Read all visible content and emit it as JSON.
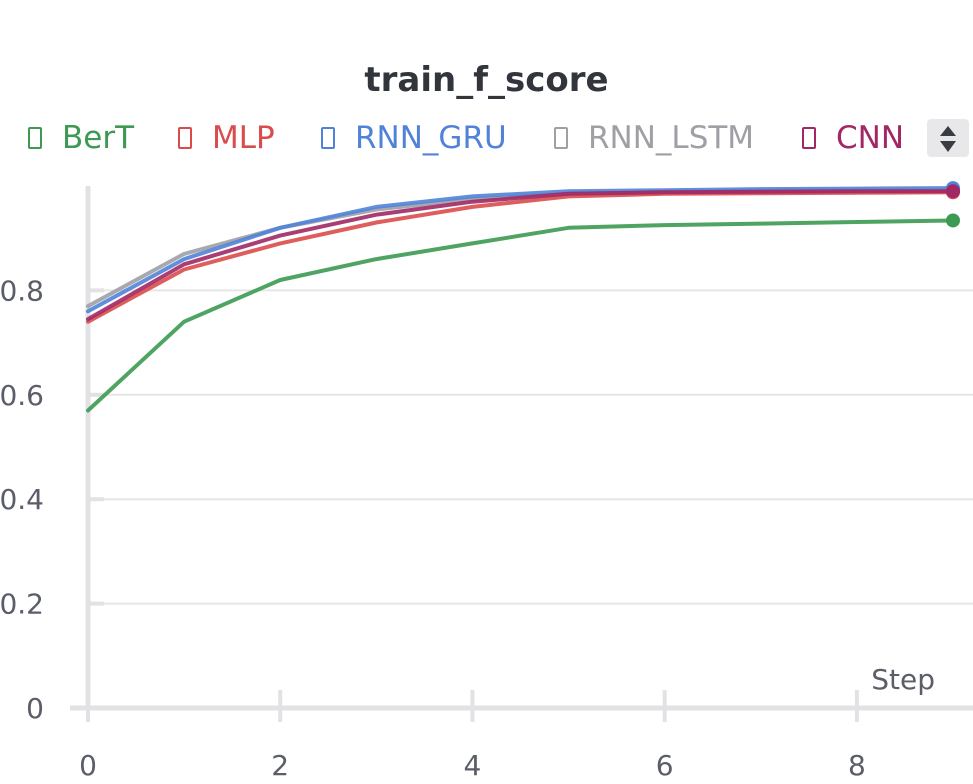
{
  "chart_data": {
    "type": "line",
    "title": "train_f_score",
    "xlabel": "Step",
    "ylabel": "",
    "xlim": [
      0,
      9
    ],
    "ylim": [
      0,
      1
    ],
    "xticks": [
      0,
      2,
      4,
      6,
      8
    ],
    "yticks": [
      0,
      0.2,
      0.4,
      0.6,
      0.8
    ],
    "ytick_labels": [
      "0",
      "0.2",
      "0.4",
      "0.6",
      "0.8"
    ],
    "grid": true,
    "legend_position": "top",
    "x": [
      0,
      1,
      2,
      3,
      4,
      5,
      6,
      7,
      8,
      9
    ],
    "series": [
      {
        "name": "BerT",
        "color": "#3d9a52",
        "values": [
          0.57,
          0.74,
          0.82,
          0.86,
          0.89,
          0.92,
          0.925,
          0.928,
          0.931,
          0.934
        ]
      },
      {
        "name": "MLP",
        "color": "#da4c4c",
        "values": [
          0.74,
          0.84,
          0.89,
          0.93,
          0.96,
          0.98,
          0.985,
          0.986,
          0.987,
          0.988
        ]
      },
      {
        "name": "RNN_GRU",
        "color": "#5083d8",
        "values": [
          0.76,
          0.86,
          0.92,
          0.96,
          0.98,
          0.99,
          0.992,
          0.994,
          0.995,
          0.996
        ]
      },
      {
        "name": "RNN_LSTM",
        "color": "#9ea0a6",
        "values": [
          0.77,
          0.87,
          0.92,
          0.955,
          0.975,
          0.985,
          0.989,
          0.991,
          0.992,
          0.992
        ]
      },
      {
        "name": "CNN",
        "color": "#a12864",
        "values": [
          0.745,
          0.85,
          0.905,
          0.945,
          0.97,
          0.985,
          0.988,
          0.989,
          0.99,
          0.99
        ]
      }
    ]
  },
  "legend": {
    "scroll_icon": "sort-arrows-icon"
  }
}
